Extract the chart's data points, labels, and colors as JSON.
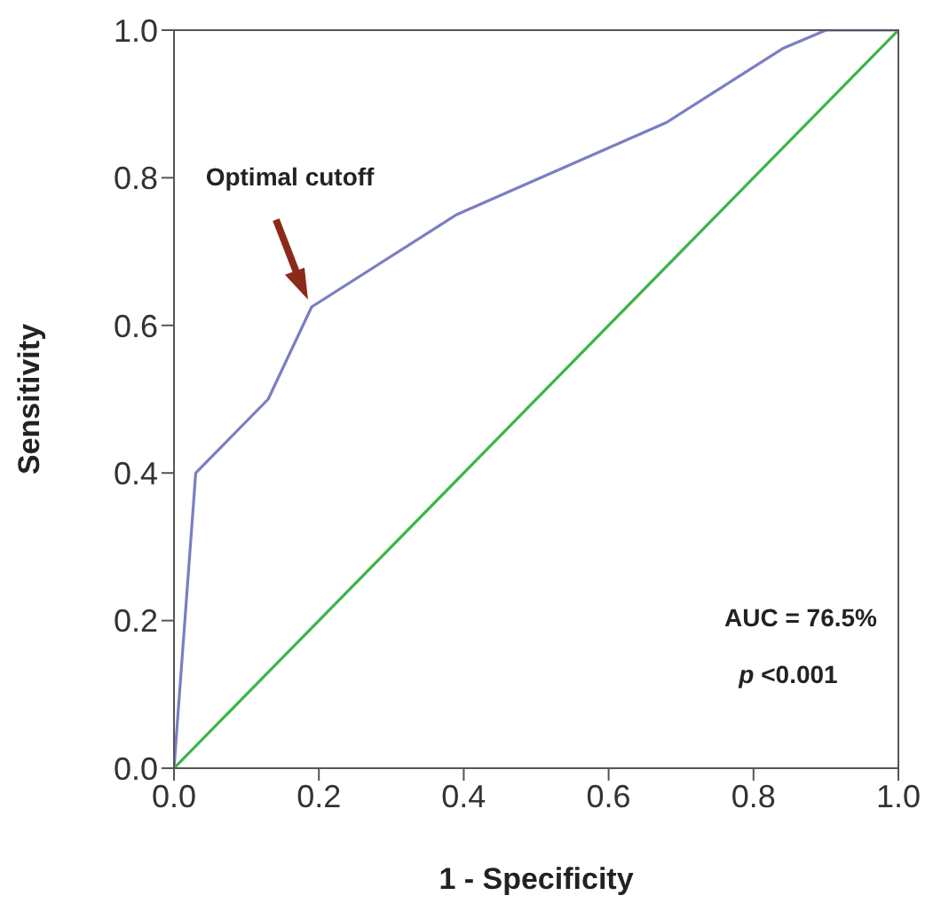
{
  "chart_data": {
    "type": "line",
    "xlabel": "1 - Specificity",
    "ylabel": "Sensitivity",
    "xlim": [
      0,
      1
    ],
    "ylim": [
      0,
      1
    ],
    "xticks": [
      {
        "value": 0,
        "label": "0.0"
      },
      {
        "value": 0.2,
        "label": "0.2"
      },
      {
        "value": 0.4,
        "label": "0.4"
      },
      {
        "value": 0.6,
        "label": "0.6"
      },
      {
        "value": 0.8,
        "label": "0.8"
      },
      {
        "value": 1,
        "label": "1.0"
      }
    ],
    "yticks": [
      {
        "value": 0,
        "label": "0.0"
      },
      {
        "value": 0.2,
        "label": "0.2"
      },
      {
        "value": 0.4,
        "label": "0.4"
      },
      {
        "value": 0.6,
        "label": "0.6"
      },
      {
        "value": 0.8,
        "label": "0.8"
      },
      {
        "value": 1,
        "label": "1.0"
      }
    ],
    "series": [
      {
        "color": "#7a7ec4",
        "x": [
          0,
          0.03,
          0.13,
          0.19,
          0.39,
          0.68,
          0.84,
          0.9,
          1
        ],
        "values": [
          0,
          0.4,
          0.5,
          0.625,
          0.75,
          0.875,
          0.975,
          1,
          1
        ]
      },
      {
        "color": "#3cb54a",
        "x": [
          0,
          1
        ],
        "values": [
          0,
          1
        ]
      }
    ],
    "annotations": [
      "Optimal cutoff",
      "AUC = 76.5%",
      "p <0.001"
    ],
    "grid": false,
    "marker": "none",
    "line_style": "solid"
  }
}
